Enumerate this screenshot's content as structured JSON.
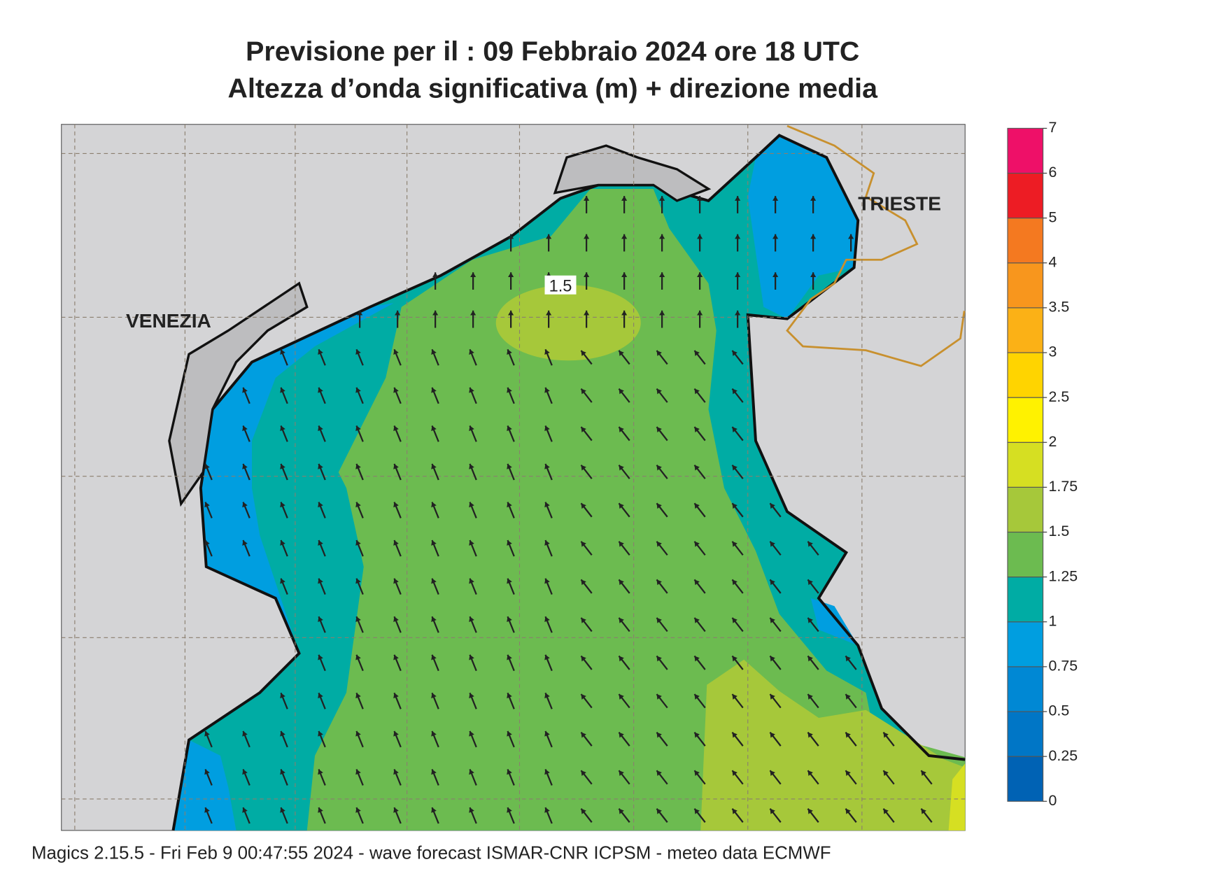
{
  "title": [
    "Previsione per il  :  09  Febbraio 2024   ore 18 UTC",
    "Altezza d’onda significativa (m) + direzione media"
  ],
  "places": [
    "VENEZIA",
    "TRIESTE"
  ],
  "contour_label": "1.5",
  "legend": {
    "ticks": [
      0,
      0.25,
      0.5,
      0.75,
      1,
      1.25,
      1.5,
      1.75,
      2,
      2.5,
      3,
      3.5,
      4,
      5,
      6,
      7
    ],
    "colors": [
      "#0062b4",
      "#0076c6",
      "#0088d4",
      "#009ee0",
      "#00aca4",
      "#6cbb50",
      "#a6c83a",
      "#d6df22",
      "#fff200",
      "#ffd400",
      "#fbb116",
      "#f8961d",
      "#f47920",
      "#ed1c24",
      "#ee1068"
    ]
  },
  "footer": "Magics 2.15.5 - Fri Feb  9 00:47:55 2024 - wave forecast  ISMAR-CNR  ICPSM - meteo data   ECMWF"
}
